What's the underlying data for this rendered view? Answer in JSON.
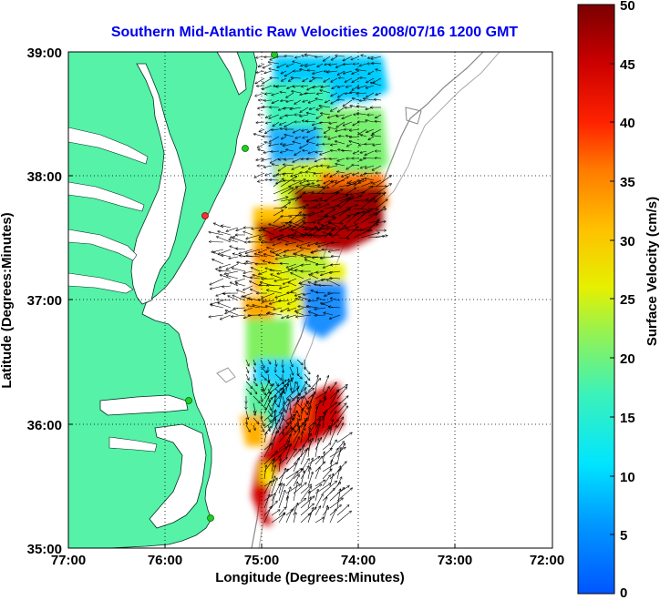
{
  "title": "Southern Mid-Atlantic Raw Velocities 2008/07/16 1200 GMT",
  "xlabel": "Longitude (Degrees:Minutes)",
  "ylabel": "Latitude (Degrees:Minutes)",
  "colorbar_label": "Surface Velocity (cm/s)",
  "x_ticks": [
    "77:00",
    "76:00",
    "75:00",
    "74:00",
    "73:00",
    "72:00"
  ],
  "y_ticks": [
    "39:00",
    "38:00",
    "37:00",
    "36:00",
    "35:00"
  ],
  "colorbar_ticks": [
    "0",
    "5",
    "10",
    "15",
    "20",
    "25",
    "30",
    "35",
    "40",
    "45",
    "50"
  ],
  "colors": {
    "land": "#55f2a8",
    "ocean": "#ffffff",
    "title": "#0000ee",
    "station": "#22cc22",
    "station_alt": "#ee3333"
  },
  "chart_data": {
    "type": "heatmap",
    "title": "Southern Mid-Atlantic Raw Velocities 2008/07/16 1200 GMT",
    "xlabel": "Longitude (Degrees:Minutes)",
    "ylabel": "Latitude (Degrees:Minutes)",
    "xlim": [
      -77,
      -72
    ],
    "ylim": [
      35,
      39
    ],
    "colorbar": {
      "label": "Surface Velocity (cm/s)",
      "range": [
        0,
        50
      ],
      "colormap": "jet"
    },
    "grid": true,
    "stations": [
      {
        "lon": -74.87,
        "lat": 39.0,
        "color": "green"
      },
      {
        "lon": -75.15,
        "lat": 38.22,
        "color": "green"
      },
      {
        "lon": -75.56,
        "lat": 37.72,
        "color": "red"
      },
      {
        "lon": -75.68,
        "lat": 36.19,
        "color": "green"
      },
      {
        "lon": -75.47,
        "lat": 35.26,
        "color": "green"
      }
    ]
  }
}
